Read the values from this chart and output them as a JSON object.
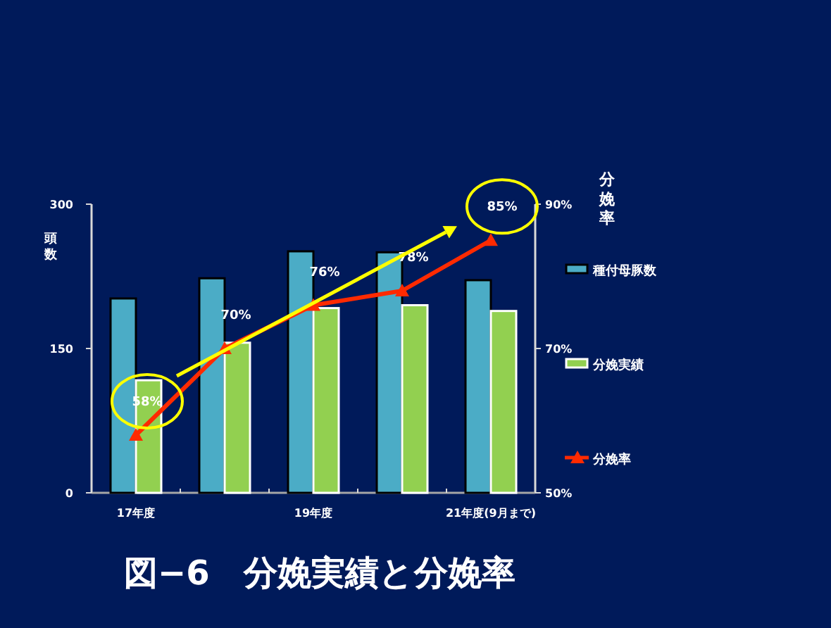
{
  "chart_data": {
    "type": "bar",
    "title": "図−6　分娩実績と分娩率",
    "ylabel": "頭数",
    "y2label": "分娩率",
    "categories": [
      "17年度",
      null,
      "19年度",
      null,
      "21年度(9月まで)"
    ],
    "series": [
      {
        "name": "種付母豚数",
        "color": "#4bacc6",
        "values": [
          202,
          223,
          251,
          250,
          221
        ]
      },
      {
        "name": "分娩実績",
        "color": "#92d050",
        "values": [
          117,
          156,
          192,
          195,
          189
        ]
      },
      {
        "name": "分娩率",
        "type": "line",
        "axis": "y2",
        "color": "#ff2a00",
        "marker": "triangle",
        "values": [
          58,
          70,
          76,
          78,
          85
        ],
        "value_labels": [
          "58%",
          "70%",
          "76%",
          "78%",
          "85%"
        ]
      }
    ],
    "ylim": [
      0,
      300
    ],
    "yticks": [
      0,
      150,
      300
    ],
    "y2lim": [
      50,
      90
    ],
    "y2ticks": [
      {
        "value": 50,
        "label": "50%"
      },
      {
        "value": 70,
        "label": "70%"
      },
      {
        "value": 90,
        "label": "90%"
      }
    ],
    "legend": "right",
    "grid": false
  }
}
